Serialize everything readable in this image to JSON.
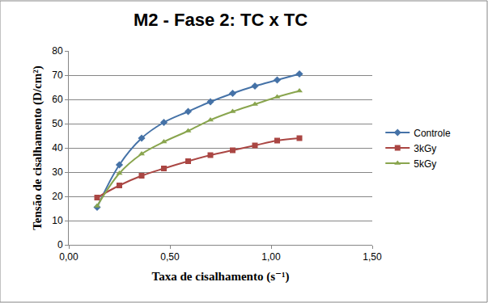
{
  "chart_data": {
    "type": "line",
    "title": "M2 - Fase 2: TC x TC",
    "x_label": "Taxa de cisalhamento (s⁻¹)",
    "y_label": "Tensão de cisalhamento (D/cm²)",
    "x": [
      0.14,
      0.25,
      0.36,
      0.47,
      0.59,
      0.7,
      0.81,
      0.92,
      1.03,
      1.14
    ],
    "series": [
      {
        "name": "Controle",
        "color": "#4572A7",
        "marker": "diamond",
        "values": [
          15.5,
          33,
          44,
          50.5,
          55,
          59,
          62.5,
          65.5,
          68,
          70.5
        ]
      },
      {
        "name": "3kGy",
        "color": "#AA4643",
        "marker": "square",
        "values": [
          19.5,
          24.5,
          28.5,
          31.5,
          34.5,
          37,
          39,
          41,
          43,
          44
        ]
      },
      {
        "name": "5kGy",
        "color": "#89A54E",
        "marker": "triangle-up",
        "values": [
          16,
          29.5,
          37.5,
          42.5,
          47,
          51.5,
          55,
          58,
          61,
          63.5
        ]
      }
    ],
    "line_style": "smooth",
    "xlim": [
      0,
      1.5
    ],
    "xticks": [
      {
        "value": 0,
        "label": "0,00"
      },
      {
        "value": 0.5,
        "label": "0,50"
      },
      {
        "value": 1,
        "label": "1,00"
      },
      {
        "value": 1.5,
        "label": "1,50"
      }
    ],
    "ylim": [
      0,
      80
    ],
    "yticks": [
      0,
      10,
      20,
      30,
      40,
      50,
      60,
      70,
      80
    ],
    "grid": true,
    "legend": "right"
  }
}
